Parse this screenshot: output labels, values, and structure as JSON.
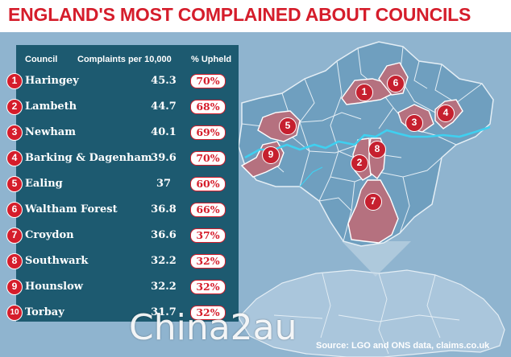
{
  "title": "ENGLAND'S MOST COMPLAINED ABOUT COUNCILS",
  "columns": {
    "council": "Council",
    "complaints": "Complaints per 10,000",
    "upheld": "% Upheld"
  },
  "rows": [
    {
      "rank": "1",
      "council": "Haringey",
      "complaints": "45.3",
      "upheld": "70%"
    },
    {
      "rank": "2",
      "council": "Lambeth",
      "complaints": "44.7",
      "upheld": "68%"
    },
    {
      "rank": "3",
      "council": "Newham",
      "complaints": "40.1",
      "upheld": "69%"
    },
    {
      "rank": "4",
      "council": "Barking & Dagenham",
      "complaints": "39.6",
      "upheld": "70%"
    },
    {
      "rank": "5",
      "council": "Ealing",
      "complaints": "37",
      "upheld": "60%"
    },
    {
      "rank": "6",
      "council": "Waltham Forest",
      "complaints": "36.8",
      "upheld": "66%"
    },
    {
      "rank": "7",
      "council": "Croydon",
      "complaints": "36.6",
      "upheld": "37%"
    },
    {
      "rank": "8",
      "council": "Southwark",
      "complaints": "32.2",
      "upheld": "32%"
    },
    {
      "rank": "9",
      "council": "Hounslow",
      "complaints": "32.2",
      "upheld": "32%"
    },
    {
      "rank": "10",
      "council": "Torbay",
      "complaints": "31.7",
      "upheld": "32%"
    }
  ],
  "map_labels": [
    "1",
    "6",
    "4",
    "3",
    "5",
    "9",
    "8",
    "2",
    "7"
  ],
  "source": "Source: LGO and ONS data, claims.co.uk",
  "watermark": "Chinа2au",
  "colors": {
    "title_red": "#d51d2b",
    "panel": "#1d5a70",
    "sea": "#8fb4cf",
    "london": "#6f9fbf",
    "highlight": "#b5717f"
  }
}
